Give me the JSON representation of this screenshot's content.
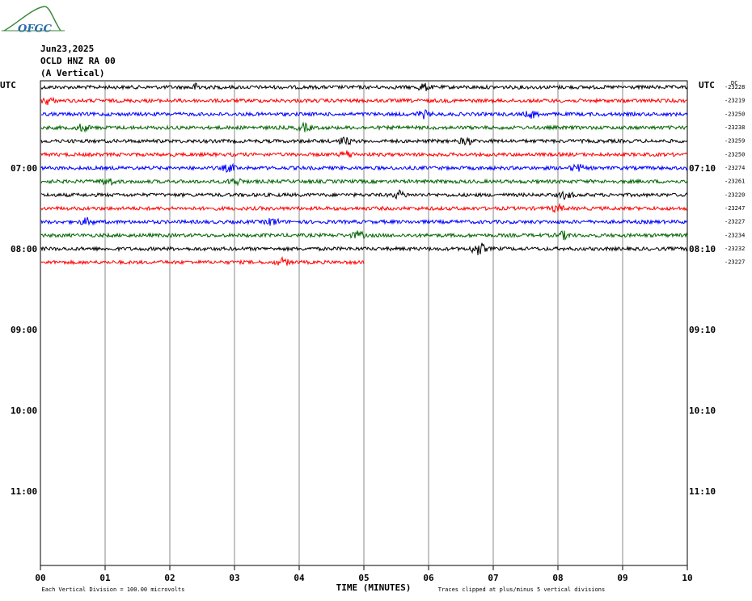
{
  "logo": "OFGC",
  "header": {
    "date": "Jun23,2025",
    "station": "OCLD HNZ RA 00",
    "component": "(A Vertical)"
  },
  "left_label": "UTC",
  "right_label": "UTC",
  "dc_label": "DC",
  "left_times": [
    "07:00",
    "08:00",
    "09:00",
    "10:00",
    "11:00"
  ],
  "right_times": [
    "07:10",
    "08:10",
    "09:10",
    "10:10",
    "11:10"
  ],
  "x_ticks": [
    "00",
    "01",
    "02",
    "03",
    "04",
    "05",
    "06",
    "07",
    "08",
    "09",
    "10"
  ],
  "traces": [
    {
      "color": "#000000",
      "dc": "-23228"
    },
    {
      "color": "#ff0000",
      "dc": "-23219"
    },
    {
      "color": "#0000ff",
      "dc": "-23250"
    },
    {
      "color": "#006400",
      "dc": "-23238"
    },
    {
      "color": "#000000",
      "dc": "-23259"
    },
    {
      "color": "#ff0000",
      "dc": "-23250"
    },
    {
      "color": "#0000ff",
      "dc": "-23274"
    },
    {
      "color": "#006400",
      "dc": "-23261"
    },
    {
      "color": "#000000",
      "dc": "-23220"
    },
    {
      "color": "#ff0000",
      "dc": "-23247"
    },
    {
      "color": "#0000ff",
      "dc": "-23227"
    },
    {
      "color": "#006400",
      "dc": "-23234"
    },
    {
      "color": "#000000",
      "dc": "-23232"
    },
    {
      "color": "#ff0000",
      "dc": "-23227"
    }
  ],
  "footer": {
    "scale": "Each Vertical Division =  100.00 microvolts",
    "axis_title": "TIME (MINUTES)",
    "clip": "Traces clipped at plus/minus 5 vertical divisions"
  }
}
